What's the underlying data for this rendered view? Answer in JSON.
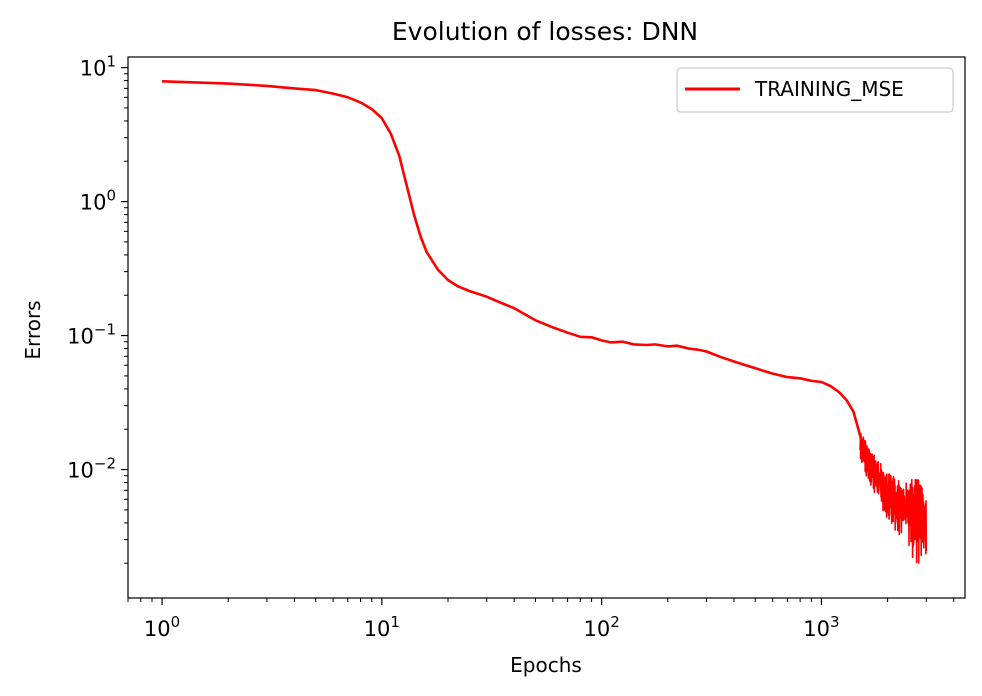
{
  "chart_data": {
    "type": "line",
    "title": "Evolution of losses: DNN",
    "xlabel": "Epochs",
    "ylabel": "Errors",
    "xscale": "log",
    "yscale": "log",
    "xlim": [
      0.7,
      4500
    ],
    "ylim": [
      0.0011,
      12
    ],
    "grid": false,
    "legend_position": "top-right",
    "x_ticks": [
      {
        "value": 1,
        "base": "10",
        "exp": "0"
      },
      {
        "value": 10,
        "base": "10",
        "exp": "1"
      },
      {
        "value": 100,
        "base": "10",
        "exp": "2"
      },
      {
        "value": 1000,
        "base": "10",
        "exp": "3"
      }
    ],
    "y_ticks": [
      {
        "value": 10,
        "base": "10",
        "exp": "1"
      },
      {
        "value": 1,
        "base": "10",
        "exp": "0"
      },
      {
        "value": 0.1,
        "base": "10",
        "exp": "−1"
      },
      {
        "value": 0.01,
        "base": "10",
        "exp": "−2"
      }
    ],
    "series": [
      {
        "name": "TRAINING_MSE",
        "color": "#ff0000",
        "points": [
          [
            1,
            7.9
          ],
          [
            2,
            7.6
          ],
          [
            3,
            7.3
          ],
          [
            4,
            7.0
          ],
          [
            5,
            6.8
          ],
          [
            6,
            6.4
          ],
          [
            7,
            6.0
          ],
          [
            8,
            5.5
          ],
          [
            9,
            4.9
          ],
          [
            10,
            4.2
          ],
          [
            11,
            3.2
          ],
          [
            12,
            2.2
          ],
          [
            13,
            1.3
          ],
          [
            14,
            0.8
          ],
          [
            15,
            0.55
          ],
          [
            16,
            0.42
          ],
          [
            18,
            0.31
          ],
          [
            20,
            0.26
          ],
          [
            22,
            0.235
          ],
          [
            25,
            0.215
          ],
          [
            30,
            0.195
          ],
          [
            35,
            0.175
          ],
          [
            40,
            0.16
          ],
          [
            50,
            0.13
          ],
          [
            60,
            0.115
          ],
          [
            70,
            0.105
          ],
          [
            80,
            0.098
          ],
          [
            90,
            0.097
          ],
          [
            100,
            0.092
          ],
          [
            110,
            0.089
          ],
          [
            125,
            0.09
          ],
          [
            140,
            0.086
          ],
          [
            160,
            0.085
          ],
          [
            175,
            0.086
          ],
          [
            200,
            0.083
          ],
          [
            220,
            0.084
          ],
          [
            250,
            0.08
          ],
          [
            280,
            0.078
          ],
          [
            300,
            0.076
          ],
          [
            350,
            0.069
          ],
          [
            400,
            0.064
          ],
          [
            500,
            0.057
          ],
          [
            600,
            0.052
          ],
          [
            700,
            0.049
          ],
          [
            800,
            0.048
          ],
          [
            900,
            0.046
          ],
          [
            1000,
            0.045
          ],
          [
            1100,
            0.042
          ],
          [
            1200,
            0.038
          ],
          [
            1300,
            0.033
          ],
          [
            1400,
            0.027
          ],
          [
            1500,
            0.018
          ],
          [
            1600,
            0.012
          ],
          [
            1700,
            0.01
          ],
          [
            1800,
            0.009
          ],
          [
            2000,
            0.007
          ],
          [
            2200,
            0.0055
          ],
          [
            2500,
            0.0045
          ],
          [
            2700,
            0.004
          ],
          [
            3000,
            0.0035
          ]
        ],
        "noise_band": [
          [
            1500,
            0.012,
            0.02
          ],
          [
            1600,
            0.0085,
            0.016
          ],
          [
            1800,
            0.006,
            0.012
          ],
          [
            2000,
            0.0042,
            0.0095
          ],
          [
            2200,
            0.0034,
            0.0085
          ],
          [
            2500,
            0.0026,
            0.008
          ],
          [
            2700,
            0.0017,
            0.0092
          ],
          [
            3000,
            0.0022,
            0.0062
          ]
        ]
      }
    ]
  }
}
